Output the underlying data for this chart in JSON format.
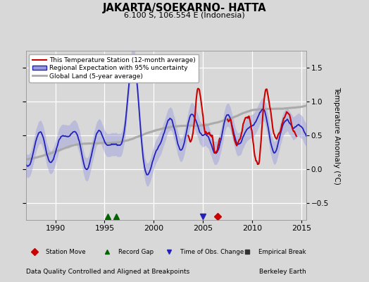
{
  "title": "JAKARTA/SOEKARNO- HATTA",
  "subtitle": "6.100 S, 106.554 E (Indonesia)",
  "ylabel": "Temperature Anomaly (°C)",
  "xlabel_left": "Data Quality Controlled and Aligned at Breakpoints",
  "xlabel_right": "Berkeley Earth",
  "ylim": [
    -0.75,
    1.75
  ],
  "xlim": [
    1987.0,
    2015.5
  ],
  "yticks": [
    -0.5,
    0,
    0.5,
    1.0,
    1.5
  ],
  "xticks": [
    1990,
    1995,
    2000,
    2005,
    2010,
    2015
  ],
  "bg_color": "#d8d8d8",
  "plot_bg_color": "#d8d8d8",
  "legend_entries": [
    "This Temperature Station (12-month average)",
    "Regional Expectation with 95% uncertainty",
    "Global Land (5-year average)"
  ],
  "station_moves": [
    2006.5
  ],
  "record_gaps": [
    1995.3,
    1996.2
  ],
  "obs_changes": [
    2005.0
  ],
  "empirical_breaks": []
}
